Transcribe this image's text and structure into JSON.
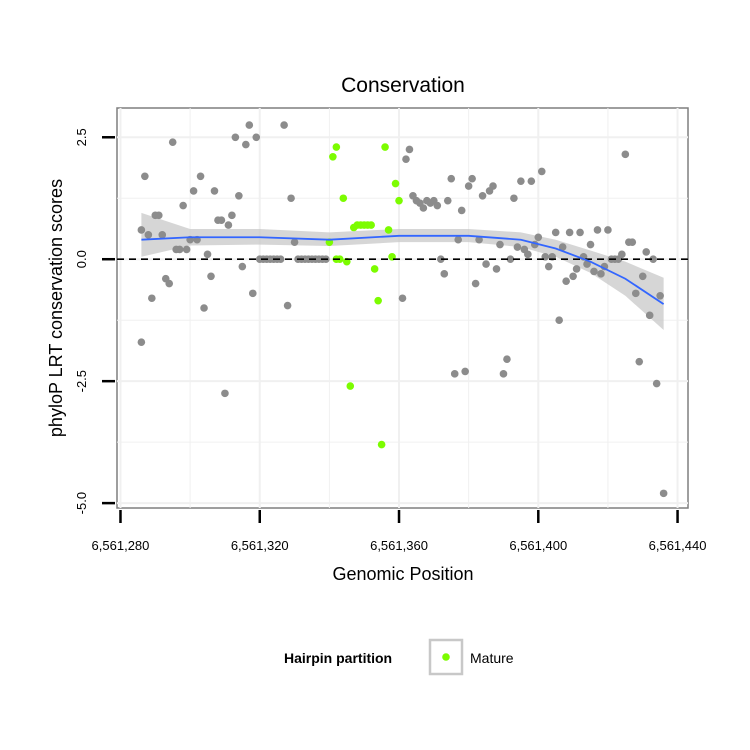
{
  "chart_data": {
    "type": "scatter",
    "title": "Conservation",
    "xlabel": "Genomic Position",
    "ylabel": "phyloP LRT conservation scores",
    "xlim": [
      6561279,
      6561443
    ],
    "ylim": [
      -5.1,
      3.1
    ],
    "x_ticks": [
      {
        "value": 6561280,
        "label": "6,561,280"
      },
      {
        "value": 6561320,
        "label": "6,561,320"
      },
      {
        "value": 6561360,
        "label": "6,561,360"
      },
      {
        "value": 6561400,
        "label": "6,561,400"
      },
      {
        "value": 6561440,
        "label": "6,561,440"
      }
    ],
    "y_ticks": [
      {
        "value": 2.5,
        "label": "2.5"
      },
      {
        "value": 0,
        "label": "0.0"
      },
      {
        "value": -2.5,
        "label": "-2.5"
      },
      {
        "value": -5,
        "label": "-5.0"
      }
    ],
    "grid": true,
    "reference_line": {
      "y": 0,
      "style": "dashed"
    },
    "legend": {
      "title": "Hairpin partition",
      "position": "bottom",
      "entries": [
        "Mature"
      ]
    },
    "colors": {
      "other": "#8c8c8c",
      "mature": "#7cfc00",
      "smooth_line": "#3366ff",
      "ribbon": "#c8c8c8",
      "panel_border": "#7f7f7f",
      "grid": "#f0f0f0"
    },
    "series": [
      {
        "group": "other",
        "points": [
          [
            6561286,
            -1.7
          ],
          [
            6561286,
            0.6
          ],
          [
            6561287,
            1.7
          ],
          [
            6561288,
            0.5
          ],
          [
            6561289,
            -0.8
          ],
          [
            6561290,
            0.9
          ],
          [
            6561291,
            0.9
          ],
          [
            6561292,
            0.5
          ],
          [
            6561293,
            -0.4
          ],
          [
            6561294,
            -0.5
          ],
          [
            6561295,
            2.4
          ],
          [
            6561296,
            0.2
          ],
          [
            6561297,
            0.2
          ],
          [
            6561298,
            1.1
          ],
          [
            6561299,
            0.2
          ],
          [
            6561300,
            0.4
          ],
          [
            6561301,
            1.4
          ],
          [
            6561302,
            0.4
          ],
          [
            6561303,
            1.7
          ],
          [
            6561304,
            -1.0
          ],
          [
            6561305,
            0.1
          ],
          [
            6561306,
            -0.35
          ],
          [
            6561307,
            1.4
          ],
          [
            6561308,
            0.8
          ],
          [
            6561309,
            0.8
          ],
          [
            6561310,
            -2.75
          ],
          [
            6561311,
            0.7
          ],
          [
            6561312,
            0.9
          ],
          [
            6561313,
            2.5
          ],
          [
            6561314,
            1.3
          ],
          [
            6561315,
            -0.15
          ],
          [
            6561316,
            2.35
          ],
          [
            6561317,
            2.75
          ],
          [
            6561318,
            -0.7
          ],
          [
            6561319,
            2.5
          ],
          [
            6561320,
            0.0
          ],
          [
            6561321,
            0.0
          ],
          [
            6561322,
            0.0
          ],
          [
            6561323,
            0.0
          ],
          [
            6561324,
            0.0
          ],
          [
            6561325,
            0.0
          ],
          [
            6561326,
            0.0
          ],
          [
            6561327,
            2.75
          ],
          [
            6561328,
            -0.95
          ],
          [
            6561329,
            1.25
          ],
          [
            6561330,
            0.35
          ],
          [
            6561331,
            0.0
          ],
          [
            6561332,
            0.0
          ],
          [
            6561333,
            0.0
          ],
          [
            6561334,
            0.0
          ],
          [
            6561335,
            0.0
          ],
          [
            6561336,
            0.0
          ],
          [
            6561337,
            0.0
          ],
          [
            6561338,
            0.0
          ],
          [
            6561339,
            0.0
          ],
          [
            6561361,
            -0.8
          ],
          [
            6561362,
            2.05
          ],
          [
            6561363,
            2.25
          ],
          [
            6561364,
            1.3
          ],
          [
            6561365,
            1.2
          ],
          [
            6561366,
            1.15
          ],
          [
            6561367,
            1.05
          ],
          [
            6561368,
            1.2
          ],
          [
            6561369,
            1.15
          ],
          [
            6561370,
            1.2
          ],
          [
            6561371,
            1.1
          ],
          [
            6561372,
            0.0
          ],
          [
            6561373,
            -0.3
          ],
          [
            6561374,
            1.2
          ],
          [
            6561375,
            1.65
          ],
          [
            6561376,
            -2.35
          ],
          [
            6561377,
            0.4
          ],
          [
            6561378,
            1.0
          ],
          [
            6561379,
            -2.3
          ],
          [
            6561380,
            1.5
          ],
          [
            6561381,
            1.65
          ],
          [
            6561382,
            -0.5
          ],
          [
            6561383,
            0.4
          ],
          [
            6561384,
            1.3
          ],
          [
            6561385,
            -0.1
          ],
          [
            6561386,
            1.4
          ],
          [
            6561387,
            1.5
          ],
          [
            6561388,
            -0.2
          ],
          [
            6561389,
            0.3
          ],
          [
            6561390,
            -2.35
          ],
          [
            6561391,
            -2.05
          ],
          [
            6561392,
            0.0
          ],
          [
            6561393,
            1.25
          ],
          [
            6561394,
            0.25
          ],
          [
            6561395,
            1.6
          ],
          [
            6561396,
            0.2
          ],
          [
            6561397,
            0.1
          ],
          [
            6561398,
            1.6
          ],
          [
            6561399,
            0.3
          ],
          [
            6561400,
            0.45
          ],
          [
            6561401,
            1.8
          ],
          [
            6561402,
            0.05
          ],
          [
            6561403,
            -0.15
          ],
          [
            6561404,
            0.05
          ],
          [
            6561405,
            0.55
          ],
          [
            6561406,
            -1.25
          ],
          [
            6561407,
            0.25
          ],
          [
            6561408,
            -0.45
          ],
          [
            6561409,
            0.55
          ],
          [
            6561410,
            -0.35
          ],
          [
            6561411,
            -0.2
          ],
          [
            6561412,
            0.55
          ],
          [
            6561413,
            0.05
          ],
          [
            6561414,
            -0.1
          ],
          [
            6561415,
            0.3
          ],
          [
            6561416,
            -0.25
          ],
          [
            6561417,
            0.6
          ],
          [
            6561418,
            -0.3
          ],
          [
            6561419,
            -0.15
          ],
          [
            6561420,
            0.6
          ],
          [
            6561421,
            0.0
          ],
          [
            6561422,
            0.0
          ],
          [
            6561423,
            0.0
          ],
          [
            6561424,
            0.1
          ],
          [
            6561425,
            2.15
          ],
          [
            6561426,
            0.35
          ],
          [
            6561427,
            0.35
          ],
          [
            6561428,
            -0.7
          ],
          [
            6561429,
            -2.1
          ],
          [
            6561430,
            -0.35
          ],
          [
            6561431,
            0.15
          ],
          [
            6561432,
            -1.15
          ],
          [
            6561433,
            0.0
          ],
          [
            6561434,
            -2.55
          ],
          [
            6561435,
            -0.75
          ],
          [
            6561436,
            -4.8
          ]
        ]
      },
      {
        "group": "Mature",
        "points": [
          [
            6561340,
            0.35
          ],
          [
            6561341,
            2.1
          ],
          [
            6561342,
            2.3
          ],
          [
            6561342,
            0.0
          ],
          [
            6561343,
            0.0
          ],
          [
            6561344,
            1.25
          ],
          [
            6561345,
            -0.05
          ],
          [
            6561346,
            -2.6
          ],
          [
            6561347,
            0.65
          ],
          [
            6561348,
            0.7
          ],
          [
            6561349,
            0.7
          ],
          [
            6561350,
            0.7
          ],
          [
            6561351,
            0.7
          ],
          [
            6561352,
            0.7
          ],
          [
            6561353,
            -0.2
          ],
          [
            6561354,
            -0.85
          ],
          [
            6561355,
            -3.8
          ],
          [
            6561356,
            2.3
          ],
          [
            6561357,
            0.6
          ],
          [
            6561358,
            0.05
          ],
          [
            6561359,
            1.55
          ],
          [
            6561360,
            1.2
          ]
        ]
      }
    ],
    "smooth": {
      "x": [
        6561286,
        6561300,
        6561320,
        6561340,
        6561360,
        6561380,
        6561395,
        6561405,
        6561415,
        6561425,
        6561436
      ],
      "y": [
        0.4,
        0.45,
        0.45,
        0.4,
        0.48,
        0.48,
        0.4,
        0.22,
        -0.05,
        -0.4,
        -0.92
      ],
      "lower": [
        0.05,
        0.28,
        0.3,
        0.27,
        0.35,
        0.35,
        0.25,
        0.05,
        -0.28,
        -0.75,
        -1.45
      ],
      "upper": [
        0.95,
        0.62,
        0.62,
        0.55,
        0.62,
        0.62,
        0.55,
        0.4,
        0.18,
        -0.05,
        -0.38
      ]
    }
  }
}
